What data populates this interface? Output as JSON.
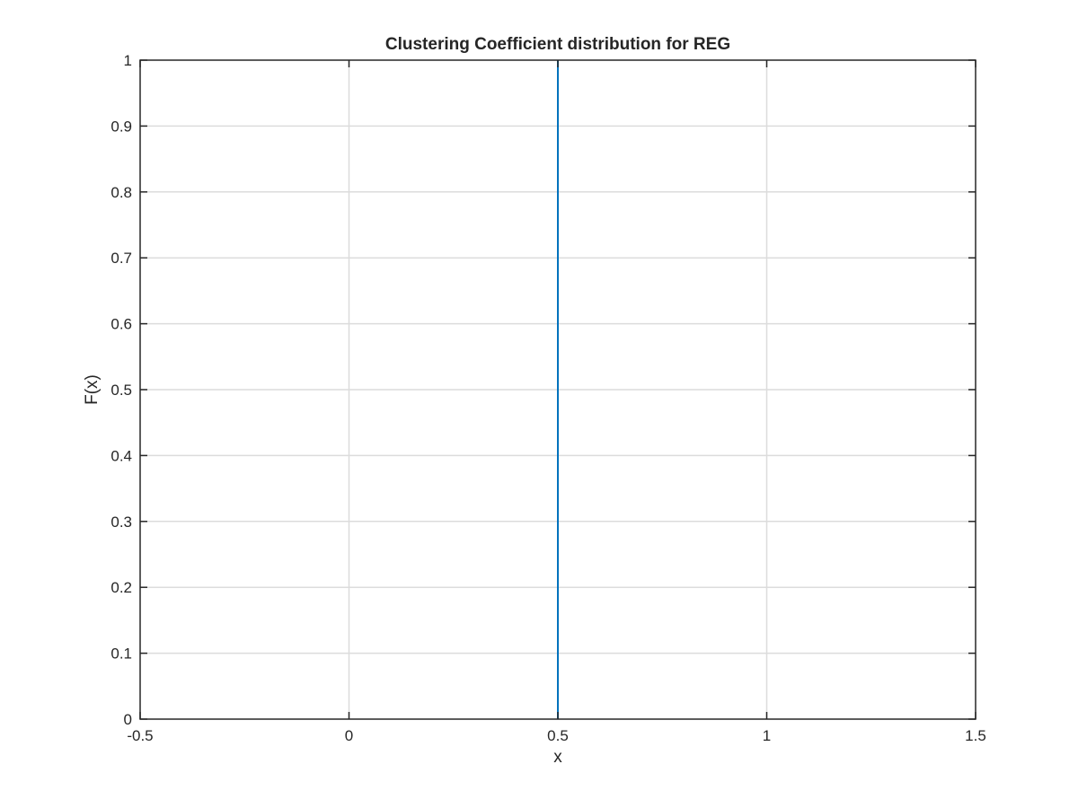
{
  "chart_data": {
    "type": "line",
    "title": "Clustering Coefficient distribution for REG",
    "xlabel": "x",
    "ylabel": "F(x)",
    "xlim": [
      -0.5,
      1.5
    ],
    "ylim": [
      0,
      1
    ],
    "xticks": [
      -0.5,
      0,
      0.5,
      1,
      1.5
    ],
    "xtick_labels": [
      "-0.5",
      "0",
      "0.5",
      "1",
      "1.5"
    ],
    "yticks": [
      0,
      0.1,
      0.2,
      0.3,
      0.4,
      0.5,
      0.6,
      0.7,
      0.8,
      0.9,
      1
    ],
    "ytick_labels": [
      "0",
      "0.1",
      "0.2",
      "0.3",
      "0.4",
      "0.5",
      "0.6",
      "0.7",
      "0.8",
      "0.9",
      "1"
    ],
    "grid": true,
    "series": [
      {
        "x": [
          0.5,
          0.5
        ],
        "y": [
          0,
          1
        ],
        "color": "#0072bd"
      }
    ],
    "colors": {
      "axes": "#262626",
      "grid": "#dcdcdc",
      "line": "#0072bd"
    }
  }
}
